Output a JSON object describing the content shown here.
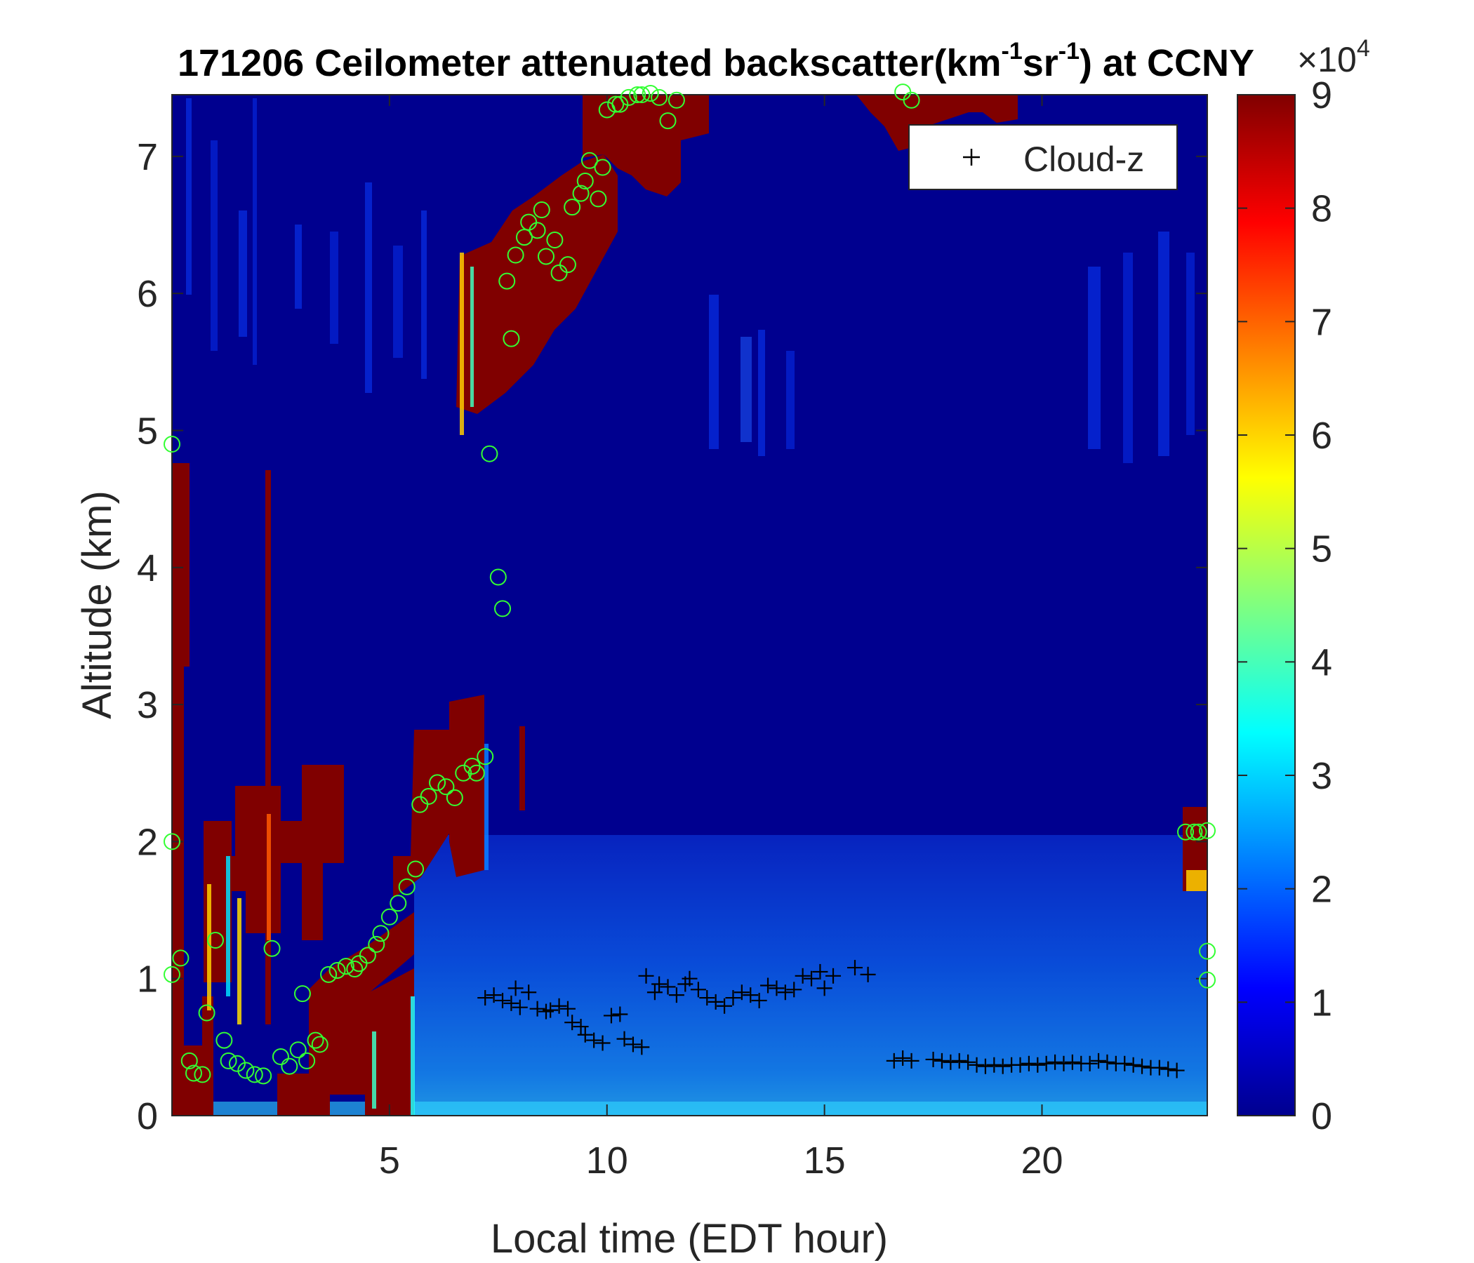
{
  "chart_data": {
    "type": "heatmap",
    "title": {
      "prefix": "171206 Ceilometer attenuated backscatter(km",
      "sup1": "-1",
      "mid": "sr",
      "sup2": "-1",
      "suffix": ") at CCNY"
    },
    "xlabel": "Local time (EDT hour)",
    "ylabel": "Altitude (km)",
    "xlim": [
      0,
      23.8
    ],
    "ylim": [
      0,
      7.45
    ],
    "xticks": [
      5,
      10,
      15,
      20
    ],
    "yticks": [
      0,
      1,
      2,
      3,
      4,
      5,
      6,
      7
    ],
    "colorbar": {
      "colormap": "jet",
      "range": [
        0,
        9
      ],
      "ticks": [
        0,
        1,
        2,
        3,
        4,
        5,
        6,
        7,
        8,
        9
      ],
      "multiplier_base": "×10",
      "multiplier_exp": "4"
    },
    "legend": {
      "position": "top-right",
      "entries": [
        {
          "marker": "+",
          "label": "Cloud-z"
        }
      ]
    },
    "series": [
      {
        "name": "Cloud-z",
        "marker": "+",
        "color": "#000000",
        "points": [
          [
            7.2,
            0.86
          ],
          [
            7.4,
            0.88
          ],
          [
            7.6,
            0.84
          ],
          [
            7.8,
            0.82
          ],
          [
            7.9,
            0.93
          ],
          [
            8.0,
            0.79
          ],
          [
            8.2,
            0.9
          ],
          [
            8.4,
            0.78
          ],
          [
            8.6,
            0.76
          ],
          [
            8.7,
            0.77
          ],
          [
            8.9,
            0.8
          ],
          [
            9.1,
            0.78
          ],
          [
            9.2,
            0.68
          ],
          [
            9.4,
            0.65
          ],
          [
            9.5,
            0.59
          ],
          [
            9.7,
            0.55
          ],
          [
            9.9,
            0.53
          ],
          [
            10.1,
            0.73
          ],
          [
            10.3,
            0.74
          ],
          [
            10.4,
            0.56
          ],
          [
            10.6,
            0.52
          ],
          [
            10.8,
            0.5
          ],
          [
            10.9,
            1.02
          ],
          [
            11.1,
            0.9
          ],
          [
            11.2,
            0.96
          ],
          [
            11.4,
            0.94
          ],
          [
            11.6,
            0.88
          ],
          [
            11.8,
            0.96
          ],
          [
            11.9,
            1.0
          ],
          [
            12.1,
            0.92
          ],
          [
            12.3,
            0.86
          ],
          [
            12.5,
            0.83
          ],
          [
            12.7,
            0.8
          ],
          [
            12.9,
            0.86
          ],
          [
            13.1,
            0.9
          ],
          [
            13.3,
            0.88
          ],
          [
            13.5,
            0.84
          ],
          [
            13.7,
            0.95
          ],
          [
            13.9,
            0.93
          ],
          [
            14.1,
            0.9
          ],
          [
            14.3,
            0.92
          ],
          [
            14.5,
            1.02
          ],
          [
            14.7,
            1.0
          ],
          [
            14.9,
            1.05
          ],
          [
            15.0,
            0.93
          ],
          [
            15.2,
            1.02
          ],
          [
            15.7,
            1.08
          ],
          [
            16.0,
            1.03
          ],
          [
            16.6,
            0.4
          ],
          [
            16.8,
            0.42
          ],
          [
            17.0,
            0.4
          ],
          [
            17.5,
            0.41
          ],
          [
            17.7,
            0.4
          ],
          [
            17.9,
            0.39
          ],
          [
            18.1,
            0.4
          ],
          [
            18.3,
            0.39
          ],
          [
            18.5,
            0.37
          ],
          [
            18.7,
            0.36
          ],
          [
            18.9,
            0.37
          ],
          [
            19.1,
            0.36
          ],
          [
            19.3,
            0.37
          ],
          [
            19.5,
            0.37
          ],
          [
            19.7,
            0.38
          ],
          [
            19.9,
            0.37
          ],
          [
            20.1,
            0.38
          ],
          [
            20.3,
            0.39
          ],
          [
            20.5,
            0.38
          ],
          [
            20.7,
            0.39
          ],
          [
            20.9,
            0.38
          ],
          [
            21.1,
            0.38
          ],
          [
            21.3,
            0.4
          ],
          [
            21.5,
            0.39
          ],
          [
            21.7,
            0.38
          ],
          [
            21.9,
            0.38
          ],
          [
            22.1,
            0.37
          ],
          [
            22.3,
            0.36
          ],
          [
            22.5,
            0.35
          ],
          [
            22.7,
            0.35
          ],
          [
            22.9,
            0.34
          ],
          [
            23.1,
            0.33
          ]
        ]
      },
      {
        "marker": "o",
        "color": "#33ff33",
        "points": [
          [
            0.0,
            4.9
          ],
          [
            0.0,
            2.0
          ],
          [
            0.0,
            1.03
          ],
          [
            0.2,
            1.15
          ],
          [
            0.4,
            0.4
          ],
          [
            0.5,
            0.31
          ],
          [
            0.7,
            0.3
          ],
          [
            0.8,
            0.75
          ],
          [
            1.0,
            1.28
          ],
          [
            1.2,
            0.55
          ],
          [
            1.3,
            0.4
          ],
          [
            1.5,
            0.38
          ],
          [
            1.7,
            0.33
          ],
          [
            1.9,
            0.3
          ],
          [
            2.1,
            0.29
          ],
          [
            2.3,
            1.22
          ],
          [
            2.5,
            0.43
          ],
          [
            2.7,
            0.36
          ],
          [
            2.9,
            0.48
          ],
          [
            3.0,
            0.89
          ],
          [
            3.1,
            0.4
          ],
          [
            3.3,
            0.55
          ],
          [
            3.4,
            0.52
          ],
          [
            3.6,
            1.03
          ],
          [
            3.8,
            1.06
          ],
          [
            4.0,
            1.09
          ],
          [
            4.2,
            1.07
          ],
          [
            4.3,
            1.11
          ],
          [
            4.5,
            1.17
          ],
          [
            4.7,
            1.25
          ],
          [
            4.8,
            1.33
          ],
          [
            5.0,
            1.45
          ],
          [
            5.2,
            1.55
          ],
          [
            5.4,
            1.67
          ],
          [
            5.6,
            1.8
          ],
          [
            5.7,
            2.27
          ],
          [
            5.9,
            2.33
          ],
          [
            6.1,
            2.43
          ],
          [
            6.3,
            2.4
          ],
          [
            6.5,
            2.32
          ],
          [
            6.7,
            2.5
          ],
          [
            6.9,
            2.55
          ],
          [
            7.0,
            2.5
          ],
          [
            7.2,
            2.62
          ],
          [
            7.3,
            4.83
          ],
          [
            7.5,
            3.93
          ],
          [
            7.6,
            3.7
          ],
          [
            7.8,
            5.67
          ],
          [
            7.7,
            6.09
          ],
          [
            7.9,
            6.28
          ],
          [
            8.1,
            6.41
          ],
          [
            8.2,
            6.52
          ],
          [
            8.4,
            6.46
          ],
          [
            8.5,
            6.61
          ],
          [
            8.6,
            6.27
          ],
          [
            8.8,
            6.39
          ],
          [
            8.9,
            6.15
          ],
          [
            9.1,
            6.21
          ],
          [
            9.2,
            6.63
          ],
          [
            9.4,
            6.73
          ],
          [
            9.5,
            6.82
          ],
          [
            9.6,
            6.97
          ],
          [
            9.8,
            6.69
          ],
          [
            9.9,
            6.92
          ],
          [
            10.0,
            7.34
          ],
          [
            10.2,
            7.38
          ],
          [
            10.3,
            7.38
          ],
          [
            10.5,
            7.43
          ],
          [
            10.7,
            7.45
          ],
          [
            10.8,
            7.45
          ],
          [
            11.0,
            7.46
          ],
          [
            11.2,
            7.43
          ],
          [
            11.4,
            7.26
          ],
          [
            11.6,
            7.41
          ],
          [
            16.8,
            7.47
          ],
          [
            17.0,
            7.41
          ],
          [
            23.3,
            2.07
          ],
          [
            23.5,
            2.07
          ],
          [
            23.6,
            2.07
          ],
          [
            23.8,
            2.08
          ],
          [
            23.8,
            1.2
          ],
          [
            23.8,
            0.99
          ]
        ]
      }
    ]
  }
}
